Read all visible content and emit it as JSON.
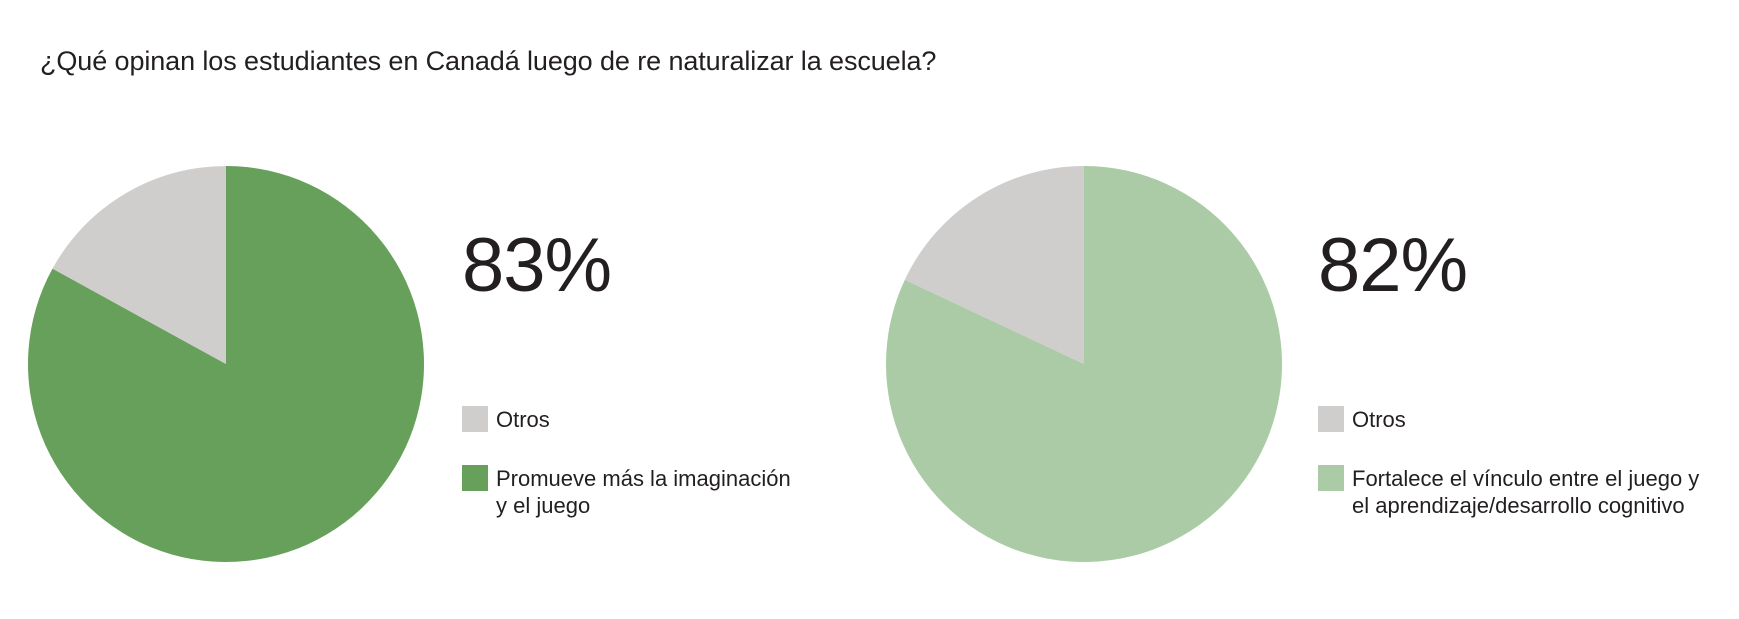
{
  "title": "¿Qué opinan los estudiantes en Canadá luego de re naturalizar la escuela?",
  "chart_data": [
    {
      "type": "pie",
      "title": "¿Qué opinan los estudiantes en Canadá luego de re naturalizar la escuela?",
      "big_label": "83%",
      "labels": [
        "Otros",
        "Promueve más la imaginación y el juego"
      ],
      "legend_lines": [
        [
          "Otros"
        ],
        [
          "Promueve más la imaginación",
          "y el juego"
        ]
      ],
      "values": [
        17,
        83
      ],
      "colors": [
        "#d0cdcd",
        "#67a05b"
      ],
      "legend_placement": "right"
    },
    {
      "type": "pie",
      "title": "",
      "big_label": "82%",
      "labels": [
        "Otros",
        "Fortalece el vínculo entre el juego y el aprendizaje/desarrollo cognitivo"
      ],
      "legend_lines": [
        [
          "Otros"
        ],
        [
          "Fortalece el vínculo entre el juego y",
          "el aprendizaje/desarrollo cognitivo"
        ]
      ],
      "values": [
        18,
        82
      ],
      "colors": [
        "#d0cdcd",
        "#abcba6"
      ],
      "legend_placement": "right"
    }
  ]
}
